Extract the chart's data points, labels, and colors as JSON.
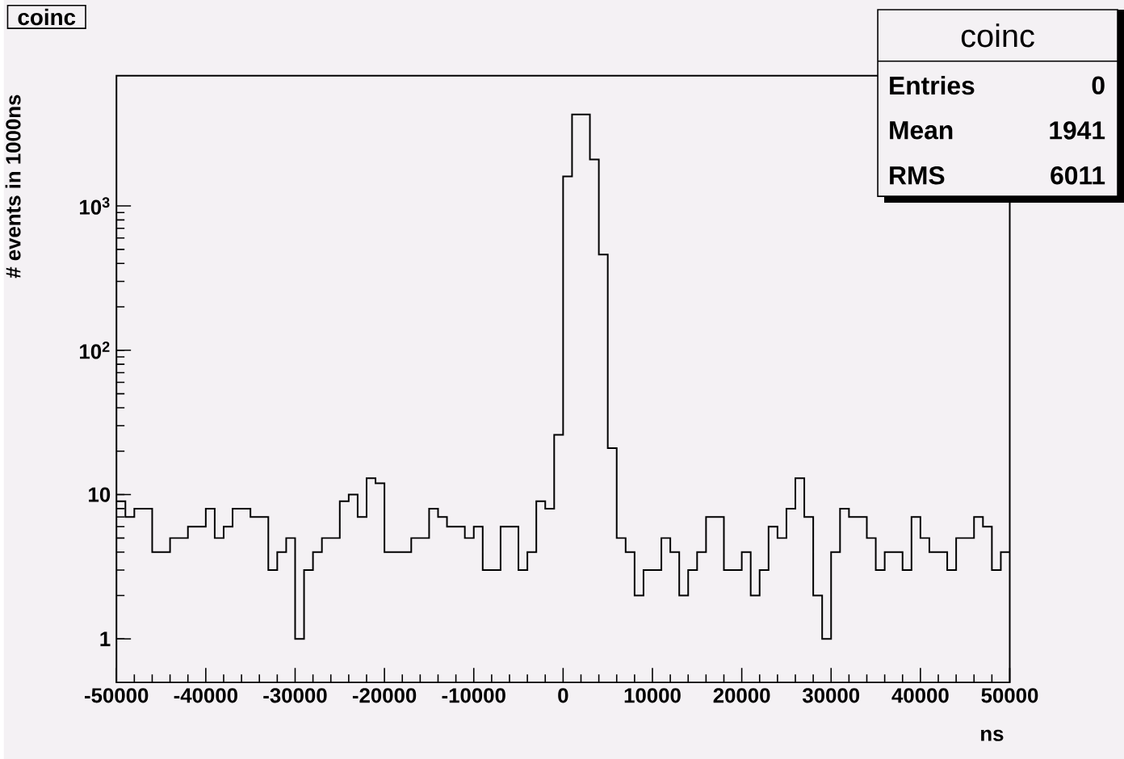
{
  "chart_data": {
    "type": "histogram",
    "title": "coinc",
    "xlabel": "ns",
    "ylabel": "# events in 1000ns",
    "annotations": [
      "coinc",
      "Entries",
      "0",
      "Mean",
      "1941",
      "RMS",
      "6011"
    ],
    "bins": [
      -50000,
      -49000,
      -48000,
      -47000,
      -46000,
      -45000,
      -44000,
      -43000,
      -42000,
      -41000,
      -40000,
      -39000,
      -38000,
      -37000,
      -36000,
      -35000,
      -34000,
      -33000,
      -32000,
      -31000,
      -30000,
      -29000,
      -28000,
      -27000,
      -26000,
      -25000,
      -24000,
      -23000,
      -22000,
      -21000,
      -20000,
      -19000,
      -18000,
      -17000,
      -16000,
      -15000,
      -14000,
      -13000,
      -12000,
      -11000,
      -10000,
      -9000,
      -8000,
      -7000,
      -6000,
      -5000,
      -4000,
      -3000,
      -2000,
      -1000,
      0,
      1000,
      2000,
      3000,
      4000,
      5000,
      6000,
      7000,
      8000,
      9000,
      10000,
      11000,
      12000,
      13000,
      14000,
      15000,
      16000,
      17000,
      18000,
      19000,
      20000,
      21000,
      22000,
      23000,
      24000,
      25000,
      26000,
      27000,
      28000,
      29000,
      30000,
      31000,
      32000,
      33000,
      34000,
      35000,
      36000,
      37000,
      38000,
      39000,
      40000,
      41000,
      42000,
      43000,
      44000,
      45000,
      46000,
      47000,
      48000,
      49000,
      50000
    ],
    "values": [
      9,
      7,
      8,
      8,
      4,
      4,
      5,
      5,
      6,
      6,
      8,
      5,
      6,
      8,
      8,
      7,
      7,
      3,
      4,
      5,
      1,
      3,
      4,
      5,
      5,
      9,
      10,
      7,
      13,
      12,
      4,
      4,
      4,
      5,
      5,
      8,
      7,
      6,
      6,
      5,
      6,
      3,
      3,
      6,
      6,
      3,
      4,
      9,
      8,
      26,
      1600,
      4300,
      4300,
      2100,
      460,
      21,
      5,
      4,
      2,
      3,
      3,
      5,
      4,
      2,
      3,
      4,
      7,
      7,
      3,
      3,
      4,
      2,
      3,
      6,
      5,
      8,
      13,
      7,
      2,
      1,
      4,
      8,
      7,
      7,
      5,
      3,
      4,
      4,
      3,
      7,
      5,
      4,
      4,
      3,
      5,
      5,
      7,
      6,
      3,
      4
    ],
    "color": "#000000",
    "log": "y",
    "xlim": [
      -50000,
      50000
    ],
    "ylim": [
      0.5,
      8000
    ],
    "xticks": [
      -50000,
      -40000,
      -30000,
      -20000,
      -10000,
      0,
      10000,
      20000,
      30000,
      40000,
      50000
    ],
    "yticks": [
      {
        "value": 1,
        "label": "1"
      },
      {
        "value": 10,
        "label": "10"
      },
      {
        "value": 100,
        "label": "10$^{2}$"
      },
      {
        "value": 1000,
        "label": "10$^{3}$"
      }
    ]
  }
}
